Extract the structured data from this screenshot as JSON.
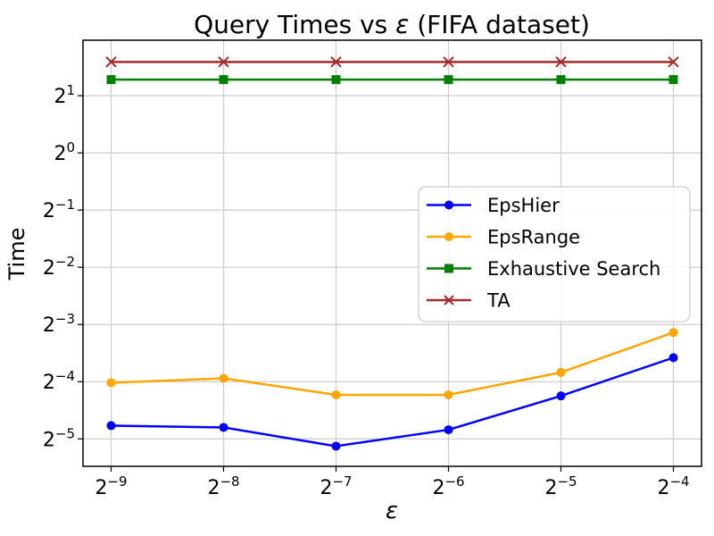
{
  "figure": {
    "background": "#ffffff",
    "axis_color": "#000000",
    "grid_color": "#cccccc",
    "legend_border_color": "#cccccc"
  },
  "chart_data": {
    "type": "line",
    "title": "Query Times vs ε (FIFA dataset)",
    "title_parts": {
      "prefix": "Query Times vs ",
      "epsilon": "ε",
      "suffix": " (FIFA dataset)"
    },
    "xlabel": "ε",
    "ylabel": "Time",
    "x_scale": "log2",
    "y_scale": "log2",
    "grid": true,
    "legend_position": "center-right",
    "x_tick_base": "2",
    "x_tick_exponents": [
      -9,
      -8,
      -7,
      -6,
      -5,
      -4
    ],
    "y_tick_exponents": [
      1,
      0,
      -1,
      -2,
      -3,
      -4,
      -5
    ],
    "x_axis_range_exponents": [
      -9.25,
      -3.75
    ],
    "y_axis_range_exponents": [
      -5.48,
      1.97
    ],
    "x_exponents": [
      -9,
      -8,
      -7,
      -6,
      -5,
      -4
    ],
    "series": [
      {
        "name": "EpsHier",
        "color": "#0000ff",
        "marker": "circle",
        "values": [
          0.0367,
          0.0359,
          0.0286,
          0.0349,
          0.0526,
          0.0836
        ]
      },
      {
        "name": "EpsRange",
        "color": "#ffa500",
        "marker": "circle",
        "values": [
          0.0617,
          0.0651,
          0.0533,
          0.0533,
          0.0699,
          0.1134
        ]
      },
      {
        "name": "Exhaustive Search",
        "color": "#008000",
        "marker": "square",
        "values": [
          2.43,
          2.43,
          2.43,
          2.43,
          2.43,
          2.43
        ]
      },
      {
        "name": "TA",
        "color": "#a52a2a",
        "marker": "x",
        "values": [
          3.01,
          3.01,
          3.01,
          3.01,
          3.01,
          3.01
        ]
      }
    ]
  }
}
